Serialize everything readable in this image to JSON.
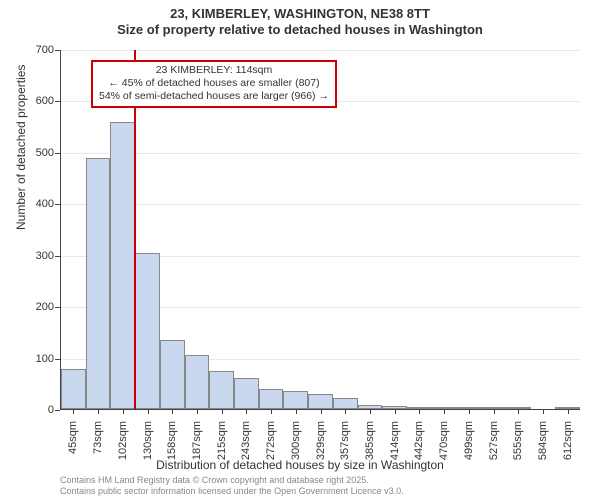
{
  "title": {
    "line1": "23, KIMBERLEY, WASHINGTON, NE38 8TT",
    "line2": "Size of property relative to detached houses in Washington"
  },
  "axes": {
    "y_title": "Number of detached properties",
    "x_title": "Distribution of detached houses by size in Washington",
    "y_min": 0,
    "y_max": 700,
    "y_step": 100,
    "y_ticks": [
      0,
      100,
      200,
      300,
      400,
      500,
      600,
      700
    ]
  },
  "chart": {
    "type": "histogram",
    "bar_fill": "#c9d8ef",
    "bar_border": "#888888",
    "grid_color": "#e8e8e8",
    "axis_color": "#444444",
    "background": "#ffffff",
    "categories": [
      "45sqm",
      "73sqm",
      "102sqm",
      "130sqm",
      "158sqm",
      "187sqm",
      "215sqm",
      "243sqm",
      "272sqm",
      "300sqm",
      "329sqm",
      "357sqm",
      "385sqm",
      "414sqm",
      "442sqm",
      "470sqm",
      "499sqm",
      "527sqm",
      "555sqm",
      "584sqm",
      "612sqm"
    ],
    "values": [
      78,
      490,
      560,
      305,
      135,
      105,
      75,
      60,
      40,
      35,
      30,
      22,
      8,
      6,
      4,
      3,
      2,
      2,
      1,
      0,
      1
    ]
  },
  "marker": {
    "color": "#cc0000",
    "position_sqm": 114,
    "callout": {
      "line1": "23 KIMBERLEY: 114sqm",
      "line2": "← 45% of detached houses are smaller (807)",
      "line3": "54% of semi-detached houses are larger (966) →"
    }
  },
  "attribution": {
    "line1": "Contains HM Land Registry data © Crown copyright and database right 2025.",
    "line2": "Contains public sector information licensed under the Open Government Licence v3.0."
  },
  "style": {
    "title_fontsize": 13,
    "axis_title_fontsize": 12,
    "tick_fontsize": 11,
    "callout_fontsize": 10.5,
    "attribution_fontsize": 9,
    "attribution_color": "#888888"
  }
}
